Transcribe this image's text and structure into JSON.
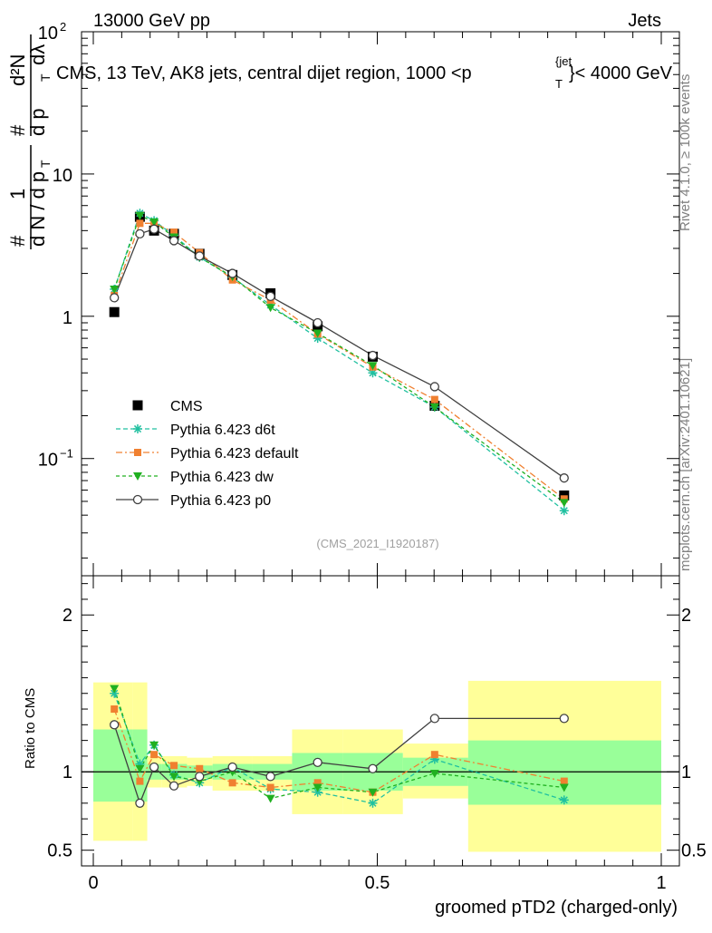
{
  "header": {
    "left": "13000 GeV pp",
    "right": "Jets"
  },
  "side": {
    "rivet": "Rivet 4.1.0, ≥ 100k events",
    "mcplots": "mcplots.cern.ch [arXiv:2401.10621]"
  },
  "ylabel_main": {
    "hash": "#",
    "one": "1",
    "dN": "d N / d p",
    "T1": "T",
    "hash2": "#",
    "d2N": "d²N",
    "dpT": "d p",
    "T2": "T",
    "dlam": "dλ"
  },
  "colors": {
    "cms": "#000000",
    "d6t": "#20c0a0",
    "default": "#f08030",
    "dw": "#20b020",
    "p0": "#404040",
    "band_yellow": "#ffff99",
    "band_green": "#99ff99"
  },
  "chart_data": [
    {
      "type": "line",
      "yscale": "log",
      "title": "CMS, 13 TeV, AK8 jets, central dijet region, 1000 <p",
      "title_T": "T",
      "title_jet": "{jet",
      "title_end": "}< 4000 GeV",
      "watermark": "(CMS_2021_I1920187)",
      "xlim": [
        0,
        1
      ],
      "ylim": [
        0.015,
        100
      ],
      "y_ticks": [
        {
          "value": 100,
          "base": "10",
          "exp": "2"
        },
        {
          "value": 10,
          "base": "10",
          "exp": ""
        },
        {
          "value": 1,
          "base": "1",
          "exp": ""
        },
        {
          "value": 0.1,
          "base": "10",
          "exp": "−1"
        }
      ],
      "legend": [
        {
          "key": "cms",
          "label": "CMS"
        },
        {
          "key": "d6t",
          "label": "Pythia 6.423 d6t"
        },
        {
          "key": "default",
          "label": "Pythia 6.423 default"
        },
        {
          "key": "dw",
          "label": "Pythia 6.423 dw"
        },
        {
          "key": "p0",
          "label": "Pythia 6.423 p0"
        }
      ],
      "x": [
        0.037,
        0.082,
        0.107,
        0.142,
        0.187,
        0.245,
        0.312,
        0.395,
        0.492,
        0.601,
        0.829
      ],
      "series": [
        {
          "key": "cms",
          "name": "CMS",
          "values": [
            1.07,
            5.0,
            4.0,
            3.8,
            2.75,
            1.95,
            1.45,
            0.85,
            0.52,
            0.235,
            0.055
          ]
        },
        {
          "key": "d6t",
          "name": "Pythia 6.423 d6t",
          "values": [
            1.55,
            5.3,
            4.7,
            3.7,
            2.6,
            1.88,
            1.2,
            0.7,
            0.4,
            0.23,
            0.043
          ]
        },
        {
          "key": "default",
          "name": "Pythia 6.423 default",
          "values": [
            1.4,
            4.5,
            4.5,
            3.9,
            2.8,
            1.8,
            1.3,
            0.75,
            0.44,
            0.26,
            0.052
          ]
        },
        {
          "key": "dw",
          "name": "Pythia 6.423 dw",
          "values": [
            1.55,
            5.1,
            4.6,
            3.6,
            2.6,
            1.9,
            1.15,
            0.76,
            0.45,
            0.23,
            0.049
          ]
        },
        {
          "key": "p0",
          "name": "Pythia 6.423 p0",
          "values": [
            1.35,
            3.8,
            4.1,
            3.4,
            2.65,
            2.0,
            1.38,
            0.9,
            0.53,
            0.32,
            0.073
          ]
        }
      ]
    },
    {
      "type": "line",
      "title": "",
      "ylabel": "Ratio to CMS",
      "xlabel": "groomed pTD2 (charged-only)",
      "xlim": [
        0,
        1
      ],
      "ylim": [
        0.4,
        2.25
      ],
      "y_ticks": [
        0.5,
        1,
        2
      ],
      "x_ticks": [
        0,
        0.5,
        1
      ],
      "x_tick_labels": [
        "0",
        "0.5",
        "1"
      ],
      "y_tick_labels": [
        "0.5",
        "1",
        "2"
      ],
      "bins": [
        {
          "lo": 0.0,
          "hi": 0.07,
          "y_lo": 0.56,
          "y_hi": 1.57,
          "g_lo": 0.81,
          "g_hi": 1.27
        },
        {
          "lo": 0.07,
          "hi": 0.095,
          "y_lo": 0.56,
          "y_hi": 1.57,
          "g_lo": 0.81,
          "g_hi": 1.27
        },
        {
          "lo": 0.095,
          "hi": 0.12,
          "y_lo": 0.9,
          "y_hi": 1.1,
          "g_lo": 0.95,
          "g_hi": 1.05
        },
        {
          "lo": 0.12,
          "hi": 0.165,
          "y_lo": 0.9,
          "y_hi": 1.1,
          "g_lo": 0.95,
          "g_hi": 1.05
        },
        {
          "lo": 0.165,
          "hi": 0.21,
          "y_lo": 0.91,
          "y_hi": 1.09,
          "g_lo": 0.96,
          "g_hi": 1.04
        },
        {
          "lo": 0.21,
          "hi": 0.28,
          "y_lo": 0.88,
          "y_hi": 1.1,
          "g_lo": 0.95,
          "g_hi": 1.05
        },
        {
          "lo": 0.28,
          "hi": 0.35,
          "y_lo": 0.88,
          "y_hi": 1.1,
          "g_lo": 0.95,
          "g_hi": 1.05
        },
        {
          "lo": 0.35,
          "hi": 0.44,
          "y_lo": 0.73,
          "y_hi": 1.27,
          "g_lo": 0.88,
          "g_hi": 1.12
        },
        {
          "lo": 0.44,
          "hi": 0.545,
          "y_lo": 0.73,
          "y_hi": 1.27,
          "g_lo": 0.88,
          "g_hi": 1.12
        },
        {
          "lo": 0.545,
          "hi": 0.66,
          "y_lo": 0.83,
          "y_hi": 1.18,
          "g_lo": 0.91,
          "g_hi": 1.09
        },
        {
          "lo": 0.66,
          "hi": 1.0,
          "y_lo": 0.49,
          "y_hi": 1.58,
          "g_lo": 0.79,
          "g_hi": 1.2
        }
      ],
      "x": [
        0.037,
        0.082,
        0.107,
        0.142,
        0.187,
        0.245,
        0.312,
        0.395,
        0.492,
        0.601,
        0.829
      ],
      "series": [
        {
          "key": "d6t",
          "name": "Pythia 6.423 d6t",
          "values": [
            1.5,
            1.05,
            1.17,
            0.98,
            0.93,
            1.03,
            0.89,
            0.87,
            0.8,
            1.08,
            0.82
          ]
        },
        {
          "key": "default",
          "name": "Pythia 6.423 default",
          "values": [
            1.4,
            0.94,
            1.11,
            1.04,
            1.02,
            0.93,
            0.9,
            0.93,
            0.87,
            1.11,
            0.94
          ]
        },
        {
          "key": "dw",
          "name": "Pythia 6.423 dw",
          "values": [
            1.53,
            1.02,
            1.17,
            0.97,
            0.94,
            1.0,
            0.83,
            0.9,
            0.87,
            0.99,
            0.9
          ]
        },
        {
          "key": "p0",
          "name": "Pythia 6.423 p0",
          "values": [
            1.3,
            0.8,
            1.03,
            0.91,
            0.97,
            1.03,
            0.97,
            1.06,
            1.02,
            1.34,
            1.34
          ]
        }
      ]
    }
  ]
}
